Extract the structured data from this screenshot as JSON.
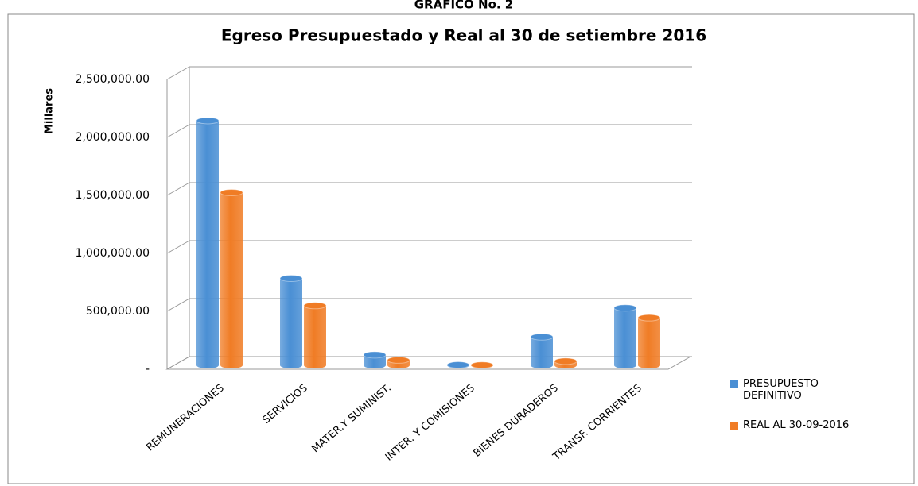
{
  "header": "GRAFICO No. 2",
  "chart_data": {
    "type": "bar3d",
    "title": "Egreso Presupuestado y Real al 30 de setiembre 2016",
    "y_label": "Millares",
    "categories": [
      "REMUNERACIONES",
      "SERVICIOS",
      "MATER.Y SUMINIST.",
      "INTER. Y COMISIONES",
      "BIENES DURADEROS",
      "TRANSF. CORRIENTES"
    ],
    "series": [
      {
        "name": "PRESUPUESTO DEFINITIVO",
        "color": "#4a8fd4",
        "values": [
          2110000,
          750000,
          90000,
          3000,
          245000,
          495000
        ]
      },
      {
        "name": "REAL AL 30-09-2016",
        "color": "#f07c25",
        "values": [
          1490000,
          515000,
          45000,
          2000,
          35000,
          410000
        ]
      }
    ],
    "ylim": [
      0,
      2500000
    ],
    "yticks": [
      {
        "value": 0,
        "label": "-"
      },
      {
        "value": 500000,
        "label": "500,000.00"
      },
      {
        "value": 1000000,
        "label": "1,000,000.00"
      },
      {
        "value": 1500000,
        "label": "1,500,000.00"
      },
      {
        "value": 2000000,
        "label": "2,000,000.00"
      },
      {
        "value": 2500000,
        "label": "2,500,000.00"
      }
    ],
    "grid": true,
    "legend": "right"
  }
}
